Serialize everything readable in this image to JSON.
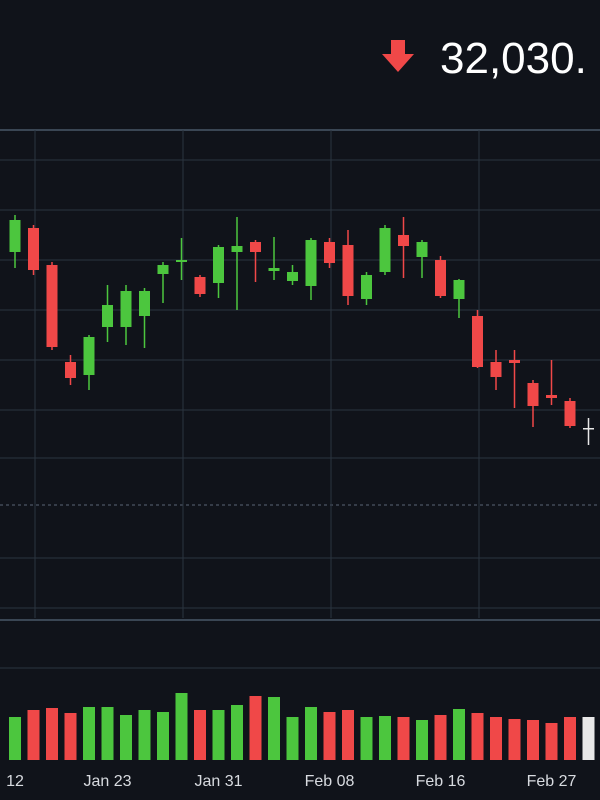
{
  "header": {
    "price": "32,030."
  },
  "chart_data": {
    "type": "candlestick",
    "categories": [
      "12",
      null,
      null,
      null,
      null,
      "Jan 23",
      null,
      null,
      null,
      null,
      null,
      "Jan 31",
      null,
      null,
      null,
      null,
      null,
      "Feb 08",
      null,
      null,
      null,
      null,
      null,
      "Feb 16",
      null,
      null,
      null,
      null,
      null,
      "Feb 27",
      null,
      null
    ],
    "open": [
      32382,
      32430,
      32356,
      32162,
      32136,
      32232,
      32232,
      32254,
      32338,
      32362,
      32332,
      32320,
      32382,
      32402,
      32344,
      32324,
      32314,
      32402,
      32396,
      32288,
      32342,
      32416,
      32372,
      32366,
      32288,
      32254,
      32162,
      32166,
      32120,
      32096,
      32084,
      32030
    ],
    "high": [
      32456,
      32436,
      32362,
      32176,
      32216,
      32316,
      32316,
      32310,
      32362,
      32410,
      32336,
      32396,
      32452,
      32406,
      32412,
      32356,
      32410,
      32410,
      32426,
      32342,
      32436,
      32452,
      32406,
      32374,
      32328,
      32266,
      32186,
      32186,
      32126,
      32166,
      32090,
      32050
    ],
    "low": [
      32350,
      32336,
      32186,
      32116,
      32106,
      32202,
      32196,
      32190,
      32280,
      32326,
      32292,
      32290,
      32266,
      32322,
      32326,
      32316,
      32286,
      32350,
      32276,
      32276,
      32336,
      32330,
      32330,
      32290,
      32250,
      32150,
      32106,
      32070,
      32032,
      32076,
      32030,
      31996
    ],
    "close": [
      32446,
      32346,
      32192,
      32130,
      32212,
      32276,
      32304,
      32304,
      32356,
      32366,
      32298,
      32392,
      32394,
      32382,
      32350,
      32342,
      32406,
      32360,
      32294,
      32336,
      32430,
      32394,
      32402,
      32294,
      32326,
      32152,
      32132,
      32160,
      32074,
      32090,
      32034,
      32030
    ],
    "volume": [
      43,
      50,
      52,
      47,
      53,
      53,
      45,
      50,
      48,
      67,
      50,
      50,
      55,
      64,
      63,
      43,
      53,
      48,
      50,
      43,
      44,
      43,
      40,
      45,
      51,
      47,
      43,
      41,
      40,
      37,
      43,
      43
    ],
    "ylim": [
      31670,
      32626
    ],
    "volume_ylim": [
      0,
      140
    ],
    "up_color": "#4cc63e",
    "down_color": "#f04848",
    "flat_color": "#e8e8e8"
  }
}
